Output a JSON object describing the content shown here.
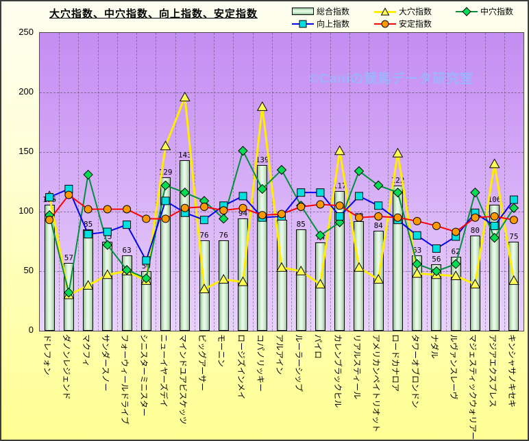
{
  "title": "大穴指数、中穴指数、向上指数、安定指数",
  "watermark": "©Caniの競馬データ研究室",
  "legend": [
    {
      "label": "総合指数",
      "marker": "bar-swatch"
    },
    {
      "label": "向上指数",
      "marker": "square"
    },
    {
      "label": "大穴指数",
      "marker": "triangle"
    },
    {
      "label": "安定指数",
      "marker": "circle"
    },
    {
      "label": "中穴指数",
      "marker": "diamond"
    }
  ],
  "colors": {
    "bar_fill": "#cfeccf",
    "line_up": "#0000ee",
    "marker_up": "#00e0e0",
    "line_ooana": "#ffee00",
    "marker_ooana": "#ffff55",
    "line_antei": "#ff0000",
    "marker_antei": "#ff9900",
    "line_chuana": "#008f3c",
    "marker_chuana": "#00dd55",
    "plot_bg_top": "#c48df2",
    "plot_bg_bottom": "#e8d2fa",
    "page_bg_bottom": "#ffff94"
  },
  "chart_data": {
    "type": "bar",
    "subtype": "bar-line-combo",
    "title": "大穴指数、中穴指数、向上指数、安定指数",
    "xlabel": "",
    "ylabel": "",
    "ylim": [
      0,
      250
    ],
    "yticks": [
      0,
      50,
      100,
      150,
      200,
      250
    ],
    "grid": true,
    "legend_position": "top-right",
    "categories": [
      "ドレフォン",
      "ダノンレジェンド",
      "マクフィ",
      "サンダースノー",
      "フォーウィールドライブ",
      "シニスターミニスター",
      "ニューイヤーズデイ",
      "マインドユアビスケッツ",
      "ビッグアーサー",
      "モーニン",
      "ロージズインメイ",
      "コパノリッキー",
      "アルアイン",
      "ルーラーシップ",
      "パイロ",
      "カレンブラックヒル",
      "リアルスティール",
      "アメリカンペイトリオット",
      "ロードカナロア",
      "タワーオブロンドン",
      "ナダル",
      "ルヴァンスレーヴ",
      "マジェスティックウォリアー",
      "アジアエクスプレス",
      "キンシャサノキセキ"
    ],
    "series": [
      {
        "name": "総合指数",
        "type": "bar",
        "marker": "none",
        "values": [
          106,
          57,
          85,
          75,
          63,
          50,
          129,
          143,
          76,
          76,
          94,
          139,
          93,
          85,
          74,
          117,
          92,
          84,
          122,
          63,
          56,
          62,
          80,
          106,
          75
        ]
      },
      {
        "name": "向上指数",
        "type": "line",
        "marker": "square",
        "values": [
          112,
          119,
          81,
          83,
          89,
          59,
          109,
          99,
          93,
          105,
          113,
          95,
          96,
          116,
          116,
          96,
          113,
          105,
          93,
          80,
          69,
          79,
          99,
          88,
          110
        ]
      },
      {
        "name": "大穴指数",
        "type": "line",
        "marker": "triangle",
        "values": [
          113,
          30,
          38,
          47,
          50,
          42,
          155,
          196,
          35,
          43,
          41,
          188,
          53,
          50,
          39,
          151,
          53,
          43,
          149,
          48,
          47,
          46,
          39,
          140,
          42
        ]
      },
      {
        "name": "安定指数",
        "type": "line",
        "marker": "circle",
        "values": [
          93,
          114,
          102,
          102,
          102,
          94,
          94,
          103,
          104,
          101,
          103,
          97,
          98,
          104,
          106,
          105,
          95,
          96,
          95,
          92,
          88,
          83,
          95,
          96,
          93
        ]
      },
      {
        "name": "中穴指数",
        "type": "line",
        "marker": "diamond",
        "values": [
          97,
          32,
          131,
          72,
          51,
          44,
          122,
          116,
          109,
          94,
          151,
          119,
          135,
          105,
          80,
          91,
          134,
          122,
          116,
          56,
          50,
          56,
          116,
          78,
          103
        ]
      }
    ]
  }
}
